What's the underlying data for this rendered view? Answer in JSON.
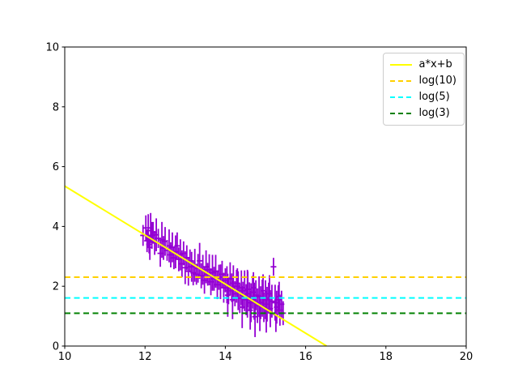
{
  "figure": {
    "background": "#ffffff",
    "plot_bg": "#ffffff",
    "spine_color": "#000000"
  },
  "chart_data": {
    "type": "line",
    "title": "",
    "xlabel": "",
    "ylabel": "",
    "xlim": [
      10,
      20
    ],
    "ylim": [
      0,
      10
    ],
    "xticks": [
      10,
      12,
      14,
      16,
      18,
      20
    ],
    "yticks": [
      0,
      2,
      4,
      6,
      8,
      10
    ],
    "grid": false,
    "legend": {
      "position": "upper right",
      "entries": [
        "a*x+b",
        "log(10)",
        "log(5)",
        "log(3)"
      ]
    },
    "series": [
      {
        "name": "a*x+b",
        "kind": "line",
        "linestyle": "solid",
        "color": "#ffff00",
        "slope": -0.82,
        "intercept": 13.55,
        "x_start": 10,
        "x_end": 16.52
      },
      {
        "name": "log(10)",
        "kind": "hline",
        "linestyle": "dashed",
        "color": "#ffd000",
        "y": 2.302585
      },
      {
        "name": "log(5)",
        "kind": "hline",
        "linestyle": "dashed",
        "color": "#00ffff",
        "y": 1.609438
      },
      {
        "name": "log(3)",
        "kind": "hline",
        "linestyle": "dashed",
        "color": "#008000",
        "y": 1.098612
      },
      {
        "name": "data",
        "kind": "errorbar",
        "color": "#9400d3",
        "marker": "plus",
        "points": [
          [
            11.95,
            3.7,
            0.35
          ],
          [
            12.02,
            3.95,
            0.42
          ],
          [
            12.05,
            3.52,
            0.38
          ],
          [
            12.08,
            3.86,
            0.55
          ],
          [
            12.1,
            3.4,
            0.3
          ],
          [
            12.12,
            3.3,
            0.42
          ],
          [
            12.14,
            3.95,
            0.5
          ],
          [
            12.17,
            3.7,
            0.45
          ],
          [
            12.2,
            3.8,
            0.35
          ],
          [
            12.24,
            3.45,
            0.4
          ],
          [
            12.28,
            3.72,
            0.55
          ],
          [
            12.33,
            3.6,
            0.32
          ],
          [
            12.38,
            3.1,
            0.45
          ],
          [
            12.42,
            3.55,
            0.6
          ],
          [
            12.46,
            3.28,
            0.4
          ],
          [
            12.5,
            3.5,
            0.48
          ],
          [
            12.55,
            3.2,
            0.35
          ],
          [
            12.6,
            3.35,
            0.55
          ],
          [
            12.64,
            3.05,
            0.42
          ],
          [
            12.68,
            3.3,
            0.5
          ],
          [
            12.72,
            2.95,
            0.38
          ],
          [
            12.76,
            3.15,
            0.55
          ],
          [
            12.8,
            3.35,
            0.45
          ],
          [
            12.84,
            2.9,
            0.4
          ],
          [
            12.88,
            3.05,
            0.52
          ],
          [
            12.92,
            2.75,
            0.45
          ],
          [
            12.96,
            3.1,
            0.4
          ],
          [
            13.0,
            2.62,
            0.55
          ],
          [
            13.04,
            2.95,
            0.42
          ],
          [
            13.08,
            2.5,
            0.48
          ],
          [
            13.12,
            2.85,
            0.38
          ],
          [
            13.16,
            2.65,
            0.5
          ],
          [
            13.2,
            2.45,
            0.42
          ],
          [
            13.24,
            2.7,
            0.55
          ],
          [
            13.28,
            2.4,
            0.35
          ],
          [
            13.32,
            2.6,
            0.48
          ],
          [
            13.36,
            2.85,
            0.6
          ],
          [
            13.4,
            2.35,
            0.42
          ],
          [
            13.44,
            2.55,
            0.5
          ],
          [
            13.48,
            2.2,
            0.45
          ],
          [
            13.52,
            2.65,
            0.55
          ],
          [
            13.56,
            2.4,
            0.38
          ],
          [
            13.6,
            2.55,
            0.52
          ],
          [
            13.64,
            2.15,
            0.45
          ],
          [
            13.68,
            2.45,
            0.6
          ],
          [
            13.72,
            2.25,
            0.4
          ],
          [
            13.76,
            2.5,
            0.55
          ],
          [
            13.8,
            2.05,
            0.48
          ],
          [
            13.84,
            2.3,
            0.42
          ],
          [
            13.88,
            2.15,
            0.58
          ],
          [
            13.92,
            2.4,
            0.45
          ],
          [
            13.96,
            1.95,
            0.5
          ],
          [
            14.0,
            2.2,
            0.4
          ],
          [
            14.04,
            2.05,
            0.62
          ],
          [
            14.06,
            1.7,
            0.72
          ],
          [
            14.08,
            1.85,
            0.45
          ],
          [
            14.12,
            2.25,
            0.55
          ],
          [
            14.16,
            1.95,
            0.48
          ],
          [
            14.18,
            1.55,
            0.65
          ],
          [
            14.2,
            2.1,
            0.6
          ],
          [
            14.24,
            1.75,
            0.42
          ],
          [
            14.28,
            2.0,
            0.55
          ],
          [
            14.3,
            2.1,
            0.5
          ],
          [
            14.32,
            1.85,
            0.65
          ],
          [
            14.36,
            1.6,
            0.5
          ],
          [
            14.4,
            1.95,
            0.58
          ],
          [
            14.42,
            1.3,
            0.7
          ],
          [
            14.44,
            1.7,
            0.45
          ],
          [
            14.48,
            1.85,
            0.68
          ],
          [
            14.52,
            1.55,
            0.52
          ],
          [
            14.55,
            1.75,
            0.8
          ],
          [
            14.56,
            1.9,
            0.6
          ],
          [
            14.6,
            1.65,
            0.48
          ],
          [
            14.62,
            1.2,
            0.65
          ],
          [
            14.64,
            1.45,
            0.65
          ],
          [
            14.68,
            1.8,
            0.55
          ],
          [
            14.7,
            1.95,
            0.52
          ],
          [
            14.72,
            1.5,
            0.62
          ],
          [
            14.74,
            0.98,
            0.68
          ],
          [
            14.76,
            1.7,
            0.5
          ],
          [
            14.8,
            1.35,
            0.58
          ],
          [
            14.84,
            1.65,
            0.68
          ],
          [
            14.86,
            1.1,
            0.6
          ],
          [
            14.88,
            1.45,
            0.55
          ],
          [
            14.92,
            1.6,
            0.62
          ],
          [
            14.94,
            1.85,
            0.55
          ],
          [
            14.96,
            1.3,
            0.5
          ],
          [
            15.0,
            1.55,
            0.65
          ],
          [
            15.02,
            1.15,
            0.7
          ],
          [
            15.04,
            1.4,
            0.58
          ],
          [
            15.08,
            1.6,
            0.52
          ],
          [
            15.1,
            1.75,
            0.62
          ],
          [
            15.12,
            1.25,
            0.62
          ],
          [
            15.16,
            1.5,
            0.55
          ],
          [
            15.2,
            2.65,
            0.3
          ],
          [
            15.24,
            1.45,
            0.6
          ],
          [
            15.26,
            1.05,
            0.58
          ],
          [
            15.28,
            1.3,
            0.55
          ],
          [
            15.32,
            1.55,
            0.48
          ],
          [
            15.34,
            1.65,
            0.5
          ],
          [
            15.36,
            1.2,
            0.52
          ],
          [
            15.4,
            1.4,
            0.45
          ],
          [
            15.44,
            1.1,
            0.4
          ]
        ]
      }
    ]
  }
}
